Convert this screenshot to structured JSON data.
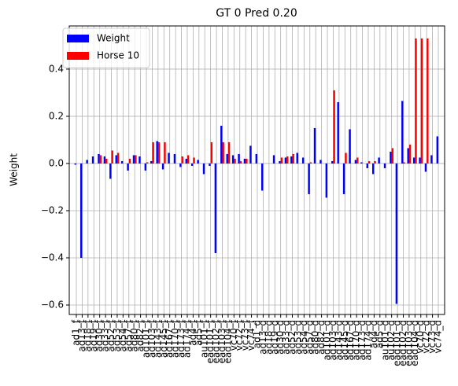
{
  "chart_data": {
    "type": "bar",
    "title": "GT 0 Pred 0.20",
    "y_label": "Weight",
    "categories": [
      "ad1_f",
      "ad13_f",
      "ad18_f",
      "ad19_f",
      "ad30_f",
      "ad33_f",
      "ad52_f",
      "ad53_f",
      "ad54_f",
      "ad57_f",
      "ad80_f",
      "ad82_f",
      "ad101_f",
      "ad103_f",
      "ad143_f",
      "ad145_f",
      "ad167_f",
      "ad170_f",
      "ad173_f",
      "ad174_f",
      "ad4_f",
      "ad5_f",
      "au101_f",
      "ead101_f",
      "ead102_f",
      "ead103_f",
      "ead104_f",
      "vc70_f",
      "vc72_f",
      "vc73_f",
      "vc74_f",
      "ad1_d",
      "ad13_d",
      "ad18_d",
      "ad19_d",
      "ad30_d",
      "ad33_d",
      "ad52_d",
      "ad53_d",
      "ad54_d",
      "ad57_d",
      "ad80_d",
      "ad82_d",
      "ad101_d",
      "ad103_d",
      "ad143_d",
      "ad145_d",
      "ad167_d",
      "ad170_d",
      "ad173_d",
      "ad174_d",
      "ad4_d",
      "ad5_d",
      "au101_d",
      "au102_d",
      "ead101_d",
      "ead102_d",
      "ead103_d",
      "ead104_d",
      "vc70_d",
      "vc72_d",
      "vc73_d",
      "vc74_d"
    ],
    "series": [
      {
        "name": "Weight",
        "color": "#0000ff",
        "values": [
          -0.005,
          -0.4,
          0.015,
          0.03,
          0.04,
          0.03,
          -0.065,
          0.035,
          0.01,
          -0.03,
          0.035,
          0.03,
          -0.03,
          0.01,
          0.095,
          -0.025,
          0.045,
          0.04,
          -0.015,
          0.02,
          -0.01,
          0.015,
          -0.045,
          -0.01,
          -0.38,
          0.16,
          0.04,
          0.035,
          0.04,
          0.02,
          0.075,
          0.04,
          -0.115,
          0,
          0.035,
          0.01,
          0.025,
          0.03,
          0.045,
          0.025,
          -0.13,
          0.15,
          0.015,
          -0.145,
          0.01,
          0.26,
          -0.13,
          0.145,
          0.015,
          0.005,
          -0.02,
          -0.045,
          0.025,
          -0.02,
          0.05,
          -0.595,
          0.265,
          0.065,
          0.025,
          0.025,
          -0.035,
          0.035,
          0.115
        ]
      },
      {
        "name": "Horse 10",
        "color": "#ff0000",
        "values": [
          0,
          0,
          0,
          0,
          0.035,
          0.02,
          0.055,
          0.045,
          0,
          0.02,
          0.035,
          0,
          0.005,
          0.09,
          0.09,
          0.09,
          0,
          0,
          0.03,
          0.035,
          0.025,
          0,
          0,
          0.09,
          0,
          0.09,
          0.09,
          0.02,
          0.01,
          0.02,
          0,
          0,
          0,
          0,
          0,
          0.025,
          0.03,
          0.04,
          0,
          0,
          0.005,
          0,
          0,
          0,
          0.31,
          0,
          0.045,
          0,
          0.025,
          0,
          0.01,
          0.01,
          0,
          0,
          0.065,
          0,
          0.005,
          0.08,
          0.53,
          0.53,
          0.53,
          0,
          0
        ]
      }
    ],
    "ylim": [
      -0.64,
      0.583
    ],
    "yticks": [
      {
        "value": -0.6,
        "label": "−0.6"
      },
      {
        "value": -0.4,
        "label": "−0.4"
      },
      {
        "value": -0.2,
        "label": "−0.2"
      },
      {
        "value": 0,
        "label": "0.0"
      },
      {
        "value": 0.2,
        "label": "0.2"
      },
      {
        "value": 0.4,
        "label": "0.4"
      }
    ],
    "grid": true,
    "legend": "upper left"
  }
}
